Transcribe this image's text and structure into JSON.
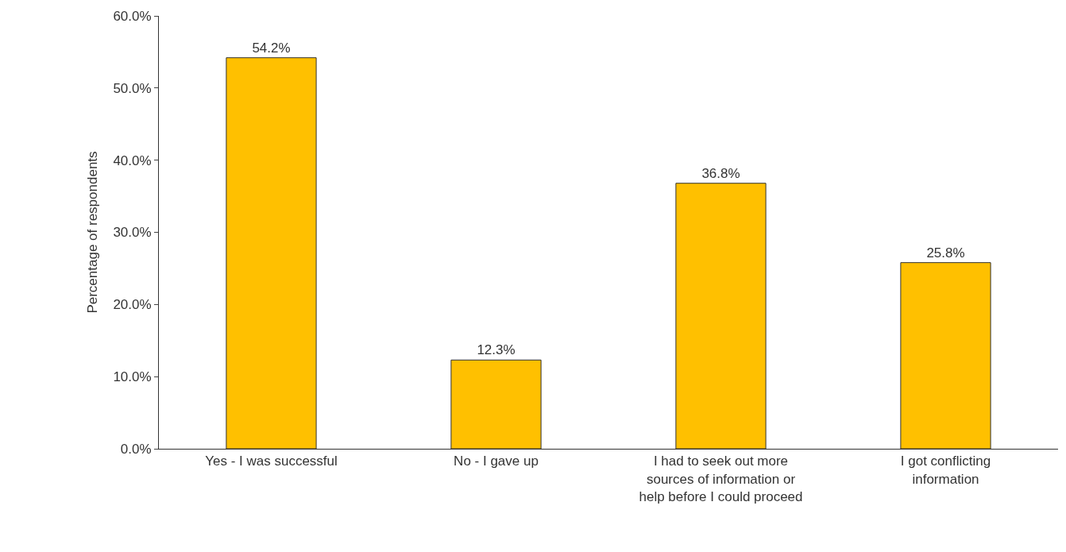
{
  "chart_data": {
    "type": "bar",
    "ylabel": "Percentage of respondents",
    "categories": [
      "Yes - I was successful",
      "No - I gave up",
      "I had to seek out more sources of information or help before I could proceed",
      "I got conflicting information"
    ],
    "values": [
      54.2,
      12.3,
      36.8,
      25.8
    ],
    "value_labels": [
      "54.2%",
      "12.3%",
      "36.8%",
      "25.8%"
    ],
    "color": "#ffc000",
    "ylim": [
      0,
      60
    ],
    "yticks": [
      {
        "value": 0,
        "label": "0.0%"
      },
      {
        "value": 10,
        "label": "10.0%"
      },
      {
        "value": 20,
        "label": "20.0%"
      },
      {
        "value": 30,
        "label": "30.0%"
      },
      {
        "value": 40,
        "label": "40.0%"
      },
      {
        "value": 50,
        "label": "50.0%"
      },
      {
        "value": 60,
        "label": "60.0%"
      }
    ],
    "grid": false,
    "legend": false
  }
}
